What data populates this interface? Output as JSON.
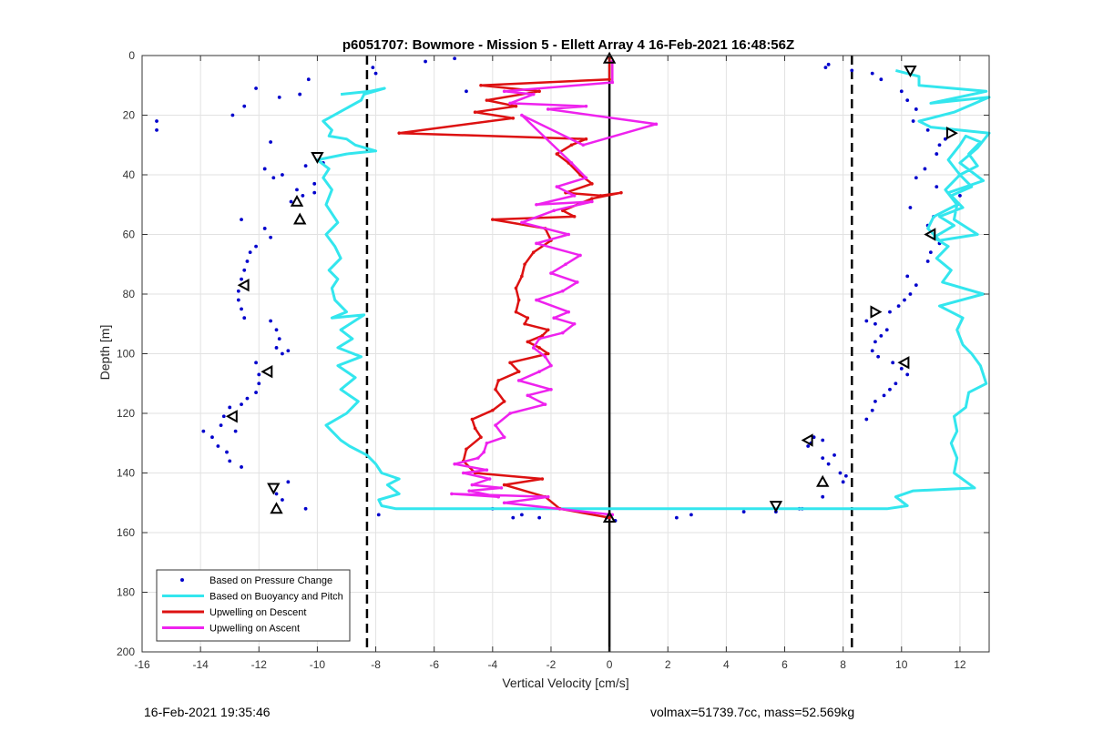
{
  "footer": {
    "timestamp": "16-Feb-2021 19:35:46",
    "vehicle_info": "volmax=51739.7cc, mass=52.569kg"
  },
  "chart_data": {
    "type": "line",
    "title": "p6051707: Bowmore - Mission 5 - Ellett Array 4 16-Feb-2021 16:48:56Z",
    "xlabel": "Vertical Velocity [cm/s]",
    "ylabel": "Depth [m]",
    "xlim": [
      -16,
      13
    ],
    "ylim": [
      0,
      200
    ],
    "y_reversed": true,
    "x_ticks": [
      -16,
      -14,
      -12,
      -10,
      -8,
      -6,
      -4,
      -2,
      0,
      2,
      4,
      6,
      8,
      10,
      12
    ],
    "y_ticks": [
      0,
      20,
      40,
      60,
      80,
      100,
      120,
      140,
      160,
      180,
      200
    ],
    "grid": true,
    "legend_position": "bottom-left",
    "colors": {
      "pressure": "#0000cc",
      "buoyancy": "#33e6ee",
      "descent": "#dd1111",
      "ascent": "#ee22ee"
    },
    "reference_lines": {
      "zero": 0,
      "dashed": [
        -8.3,
        8.3
      ]
    },
    "series": [
      {
        "name": "Based on Pressure Change",
        "style": "points",
        "x": [
          -15.5,
          -15.5,
          -12.9,
          -12.5,
          -12.1,
          -11.3,
          -10.3,
          -10.6,
          -11.6,
          -10.1,
          -10.4,
          -10.1,
          -9.8,
          -11.2,
          -11.8,
          -11.5,
          -10.9,
          -10.7,
          -10.5,
          -12.6,
          -11.8,
          -11.6,
          -12.1,
          -12.3,
          -12.4,
          -12.5,
          -12.6,
          -12.7,
          -12.7,
          -12.6,
          -12.5,
          -11.6,
          -11.4,
          -11.3,
          -11.4,
          -11.2,
          -11.0,
          -12.1,
          -12.0,
          -12.0,
          -12.1,
          -12.4,
          -12.6,
          -13.0,
          -13.2,
          -13.3,
          -12.8,
          -13.6,
          -13.9,
          -13.4,
          -13.1,
          -13.0,
          -12.6,
          -11.0,
          -11.4,
          -11.2,
          -10.4,
          -7.9,
          -6.3,
          -5.3,
          -4.0,
          -3.0,
          -2.4,
          -0.1,
          0.2,
          2.3,
          2.8,
          4.6,
          6.6,
          6.8,
          6.9,
          7.0,
          7.3,
          7.5,
          7.7,
          7.9,
          8.1,
          9.0,
          9.3,
          10.0,
          10.2,
          10.5,
          10.4,
          10.9,
          11.2,
          11.3,
          11.5,
          10.8,
          10.5,
          11.2,
          12.0,
          11.9,
          10.3,
          11.1,
          10.9,
          11.3,
          11.0,
          10.9,
          9.1,
          9.5,
          9.3,
          9.1,
          9.0,
          9.2,
          9.7,
          10.0,
          10.2,
          9.8,
          9.6,
          9.4,
          9.1,
          9.0,
          8.8,
          10.3,
          10.1,
          9.9,
          9.6,
          10.2,
          10.5,
          8.8,
          7.5,
          8.3,
          8.0,
          5.7,
          7.3,
          6.5,
          7.3,
          -3.3,
          -8.1,
          -8.0,
          -4.9,
          7.4
        ],
        "y": [
          22,
          25,
          20,
          17,
          11,
          14,
          8,
          13,
          29,
          43,
          37,
          46,
          36,
          40,
          38,
          41,
          49,
          45,
          47,
          55,
          58,
          61,
          64,
          66,
          69,
          72,
          75,
          79,
          82,
          85,
          88,
          89,
          92,
          95,
          98,
          100,
          99,
          103,
          107,
          110,
          113,
          115,
          117,
          118,
          121,
          124,
          126,
          128,
          126,
          131,
          133,
          136,
          138,
          143,
          147,
          149,
          152,
          154,
          2,
          1,
          152,
          154,
          155,
          155,
          156,
          155,
          154,
          153,
          152,
          131,
          130,
          128,
          135,
          137,
          134,
          140,
          141,
          6,
          8,
          12,
          15,
          18,
          22,
          25,
          33,
          30,
          28,
          38,
          41,
          44,
          47,
          50,
          51,
          54,
          57,
          63,
          66,
          69,
          90,
          92,
          94,
          96,
          99,
          101,
          103,
          105,
          107,
          110,
          112,
          114,
          116,
          119,
          122,
          80,
          82,
          84,
          86,
          74,
          77,
          89,
          3,
          5,
          143,
          153,
          148,
          152,
          129,
          155,
          4,
          6,
          12,
          4
        ]
      },
      {
        "name": "Based on Buoyancy and Pitch",
        "style": "line",
        "x": [
          -9.2,
          -8.2,
          -7.7,
          -8.4,
          -8.5,
          -9.8,
          -9.5,
          -9.6,
          -9.0,
          -8.7,
          -8.0,
          -9.0,
          -10.0,
          -9.6,
          -9.8,
          -9.5,
          -9.7,
          -9.3,
          -9.7,
          -9.4,
          -9.2,
          -9.6,
          -9.3,
          -9.5,
          -9.4,
          -9.0,
          -9.5,
          -8.4,
          -9.2,
          -8.8,
          -9.3,
          -8.5,
          -9.3,
          -8.7,
          -9.2,
          -8.6,
          -9.0,
          -9.7,
          -9.4,
          -9.2,
          -8.9,
          -8.3,
          -8.0,
          -7.8,
          -7.2,
          -7.6,
          -7.2,
          -7.9,
          -7.8,
          -7.3,
          -3.0,
          4.0,
          9.5,
          10.2,
          9.8,
          10.4,
          12.5,
          11.8,
          11.9,
          11.7,
          11.9,
          11.8,
          12.2,
          12.3,
          12.9,
          12.7,
          12.4,
          12.1,
          11.9,
          12.1,
          11.3,
          12.8,
          11.4,
          11.7,
          11.2,
          11.6,
          11.1,
          11.8,
          11.3,
          12.1,
          11.7,
          12.4,
          12.0,
          12.6,
          12.3,
          12.7,
          12.2,
          12.0,
          11.6,
          12.0,
          11.5,
          11.9,
          11.8,
          12.6,
          11.3,
          10.9,
          11.1,
          11.9,
          11.6,
          12.8,
          12.0,
          12.6,
          13.0,
          11.0,
          10.6,
          11.8,
          13.0,
          11.0,
          12.9,
          10.6,
          10.6,
          9.8,
          9.8
        ],
        "y": [
          13,
          12,
          11,
          13,
          15,
          22,
          25,
          27,
          28,
          30,
          32,
          33,
          35,
          38,
          41,
          45,
          50,
          56,
          60,
          64,
          68,
          72,
          75,
          78,
          82,
          86,
          88,
          87,
          92,
          95,
          98,
          101,
          104,
          108,
          112,
          116,
          120,
          124,
          127,
          129,
          131,
          134,
          137,
          140,
          142,
          144,
          147,
          149,
          151,
          152,
          152,
          152,
          152,
          151,
          148,
          146,
          145,
          140,
          135,
          130,
          126,
          121,
          118,
          113,
          110,
          104,
          100,
          97,
          92,
          88,
          84,
          80,
          76,
          72,
          68,
          64,
          61,
          57,
          54,
          51,
          47,
          44,
          40,
          37,
          33,
          29,
          27,
          30,
          35,
          40,
          45,
          50,
          55,
          60,
          62,
          58,
          54,
          50,
          46,
          42,
          36,
          31,
          26,
          24,
          22,
          19,
          14,
          16,
          12,
          10,
          7,
          5,
          5
        ]
      },
      {
        "name": "Upwelling on Descent",
        "style": "line-markers",
        "x": [
          0.0,
          0.0,
          -4.4,
          -2.4,
          -4.2,
          -3.2,
          -4.6,
          -3.3,
          -7.2,
          -0.8,
          -1.3,
          -1.8,
          -1.4,
          -1.0,
          -0.6,
          -1.5,
          -0.3,
          0.4,
          -0.6,
          -1.6,
          -1.2,
          -4.0,
          -2.2,
          -2.0,
          -2.6,
          -2.9,
          -3.0,
          -3.2,
          -3.1,
          -3.2,
          -2.8,
          -2.9,
          -2.1,
          -2.3,
          -2.8,
          -2.4,
          -2.1,
          -3.4,
          -3.1,
          -3.8,
          -3.9,
          -3.6,
          -4.0,
          -4.7,
          -4.6,
          -4.4,
          -4.9,
          -5.0,
          -4.6,
          -2.3,
          -3.6,
          -2.2,
          -1.7,
          0.0
        ],
        "y": [
          1,
          8,
          10,
          12,
          15,
          17,
          19,
          21,
          26,
          28,
          30,
          33,
          36,
          40,
          43,
          46,
          47,
          46,
          48,
          52,
          54,
          55,
          58,
          62,
          66,
          70,
          74,
          78,
          82,
          86,
          88,
          90,
          92,
          94,
          96,
          98,
          100,
          103,
          106,
          109,
          112,
          116,
          119,
          122,
          125,
          128,
          132,
          136,
          140,
          142,
          144,
          148,
          152,
          155
        ]
      },
      {
        "name": "Upwelling on Ascent",
        "style": "line-markers",
        "x": [
          0.1,
          0.1,
          -3.6,
          -2.6,
          -3.4,
          -0.8,
          -2.1,
          1.6,
          -0.9,
          -3.0,
          -1.3,
          -0.8,
          -1.8,
          -1.2,
          -2.5,
          -0.6,
          -1.9,
          -3.0,
          -1.4,
          -2.5,
          -1.0,
          -1.5,
          -2.0,
          -1.1,
          -1.6,
          -2.5,
          -1.4,
          -1.9,
          -1.2,
          -1.6,
          -2.4,
          -2.6,
          -2.2,
          -2.0,
          -2.4,
          -3.1,
          -2.0,
          -2.8,
          -2.2,
          -3.4,
          -3.9,
          -3.6,
          -4.2,
          -4.3,
          -4.5,
          -5.3,
          -4.2,
          -5.0,
          -4.1,
          -4.7,
          -3.7,
          -4.8,
          -3.8,
          -5.4,
          -2.1,
          -3.6,
          0.1
        ],
        "y": [
          2,
          9,
          12,
          13,
          16,
          17,
          18,
          23,
          30,
          20,
          36,
          41,
          44,
          47,
          50,
          49,
          52,
          56,
          60,
          63,
          67,
          70,
          73,
          76,
          79,
          82,
          86,
          88,
          90,
          93,
          95,
          98,
          101,
          104,
          106,
          109,
          112,
          114,
          117,
          120,
          124,
          128,
          130,
          133,
          135,
          137,
          139,
          140,
          142,
          144,
          145,
          146,
          148,
          147,
          148,
          150,
          154
        ]
      }
    ],
    "markers": {
      "style": "open-triangle",
      "points": [
        {
          "x": 10.3,
          "y": 5,
          "dir": "down"
        },
        {
          "x": 11.7,
          "y": 26,
          "dir": "right"
        },
        {
          "x": -10.0,
          "y": 34,
          "dir": "down"
        },
        {
          "x": -10.7,
          "y": 49,
          "dir": "up"
        },
        {
          "x": -10.6,
          "y": 55,
          "dir": "up"
        },
        {
          "x": 11.0,
          "y": 60,
          "dir": "left"
        },
        {
          "x": -12.5,
          "y": 77,
          "dir": "left"
        },
        {
          "x": 9.1,
          "y": 86,
          "dir": "right"
        },
        {
          "x": 10.1,
          "y": 103,
          "dir": "left"
        },
        {
          "x": -11.7,
          "y": 106,
          "dir": "left"
        },
        {
          "x": -12.9,
          "y": 121,
          "dir": "left"
        },
        {
          "x": -11.5,
          "y": 145,
          "dir": "down"
        },
        {
          "x": 6.8,
          "y": 129,
          "dir": "left"
        },
        {
          "x": 7.3,
          "y": 143,
          "dir": "up"
        },
        {
          "x": 5.7,
          "y": 151,
          "dir": "down"
        },
        {
          "x": 0.0,
          "y": 1,
          "dir": "up"
        },
        {
          "x": 0.0,
          "y": 155,
          "dir": "up"
        },
        {
          "x": -11.4,
          "y": 152,
          "dir": "up"
        }
      ]
    }
  }
}
